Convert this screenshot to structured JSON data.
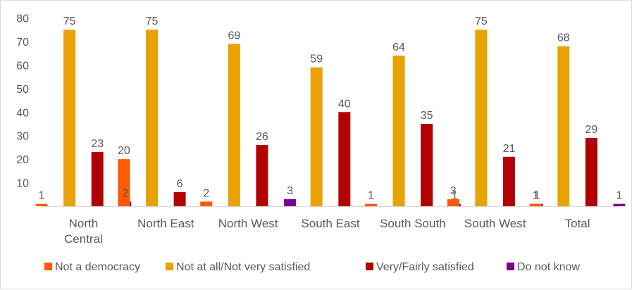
{
  "chart_data": {
    "type": "bar",
    "categories": [
      "North Central",
      "North East",
      "North West",
      "South East",
      "South South",
      "South West",
      "Total"
    ],
    "series": [
      {
        "name": "Not a democracy",
        "color": "#ff5a00",
        "values": [
          1,
          20,
          2,
          null,
          1,
          3,
          1
        ],
        "labels": [
          "1",
          "20",
          "2",
          "",
          "1",
          "3",
          "1"
        ]
      },
      {
        "name": "Not at all/Not very satisfied",
        "color": "#e8a202",
        "values": [
          75,
          75,
          69,
          59,
          64,
          75,
          68
        ],
        "labels": [
          "75",
          "75",
          "69",
          "59",
          "64",
          "75",
          "68"
        ]
      },
      {
        "name": "Very/Fairly satisfied",
        "color": "#b30000",
        "values": [
          23,
          6,
          26,
          40,
          35,
          21,
          29
        ],
        "labels": [
          "23",
          "6",
          "26",
          "40",
          "35",
          "21",
          "29"
        ]
      },
      {
        "name": "Do not know",
        "color": "#7a0091",
        "values": [
          2,
          null,
          3,
          null,
          1,
          1,
          1
        ],
        "labels": [
          "2",
          "",
          "3",
          "",
          "1",
          "1",
          "1"
        ]
      }
    ],
    "yticks": [
      "10",
      "20",
      "30",
      "40",
      "50",
      "60",
      "70",
      "80"
    ],
    "ylim": [
      0,
      80
    ],
    "grid": false,
    "legend": "bottom"
  }
}
